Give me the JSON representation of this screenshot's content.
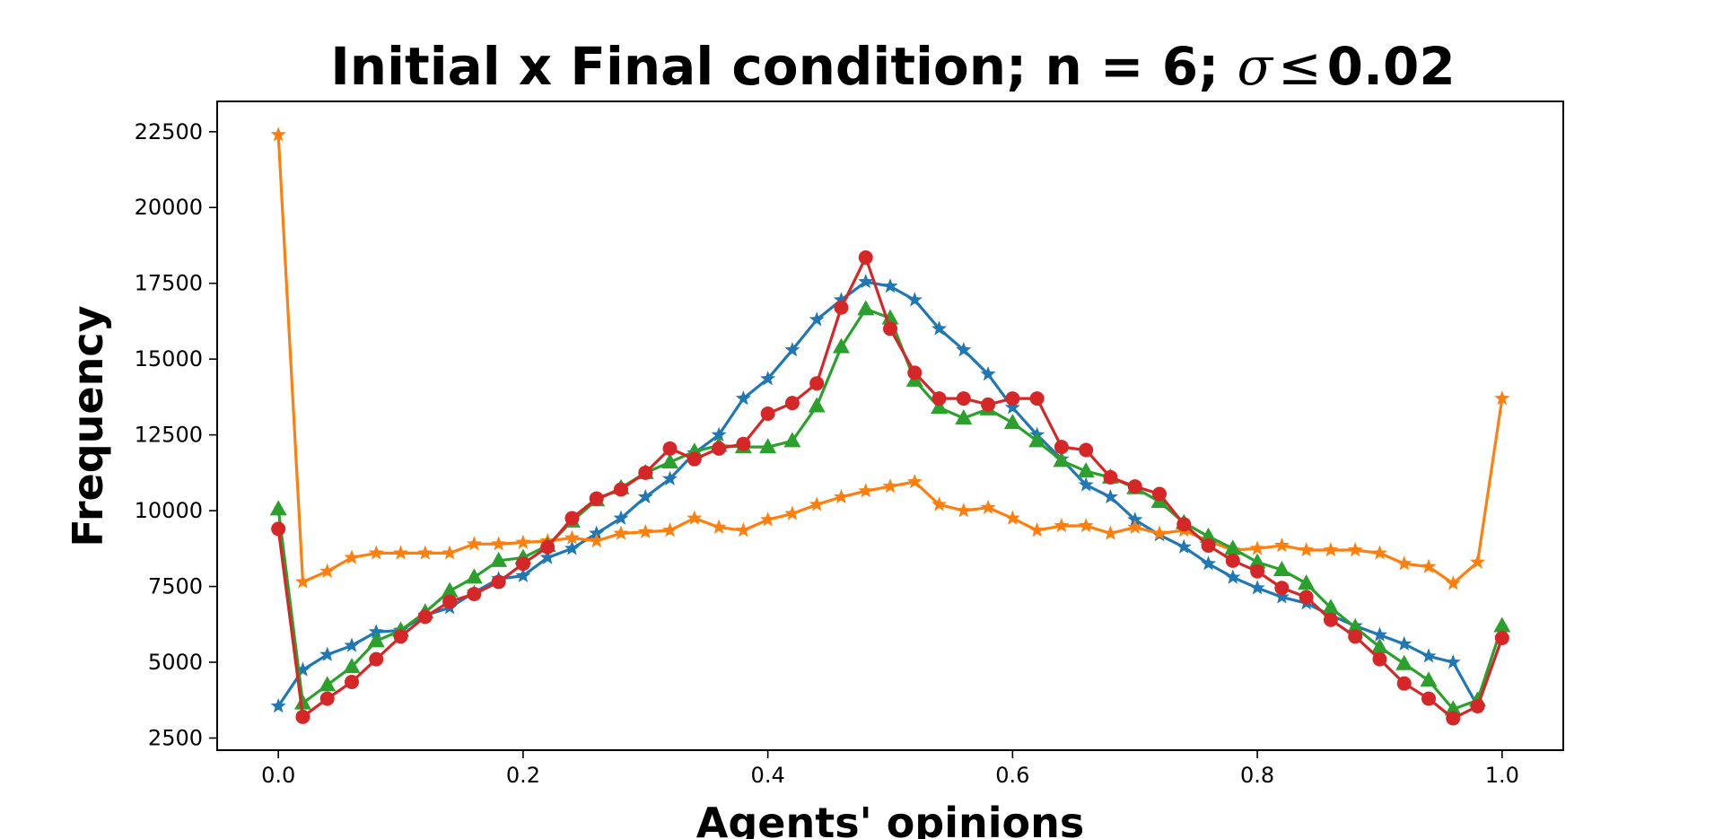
{
  "chart_data": {
    "type": "line",
    "title_text": "Initial x Final condition; n = 6; ",
    "title_sigma": "σ",
    "title_le": "≤",
    "title_value": "0.02",
    "xlabel": "Agents' opinions",
    "ylabel": "Frequency",
    "xlim": [
      -0.05,
      1.05
    ],
    "ylim": [
      2100,
      23500
    ],
    "xticks": [
      0.0,
      0.2,
      0.4,
      0.6,
      0.8,
      1.0
    ],
    "xtick_labels": [
      "0.0",
      "0.2",
      "0.4",
      "0.6",
      "0.8",
      "1.0"
    ],
    "yticks": [
      2500,
      5000,
      7500,
      10000,
      12500,
      15000,
      17500,
      20000,
      22500
    ],
    "ytick_labels": [
      "2500",
      "5000",
      "7500",
      "10000",
      "12500",
      "15000",
      "17500",
      "20000",
      "22500"
    ],
    "grid": false,
    "legend": "none",
    "x": [
      0.0,
      0.02,
      0.04,
      0.06,
      0.08,
      0.1,
      0.12,
      0.14,
      0.16,
      0.18,
      0.2,
      0.22,
      0.24,
      0.26,
      0.28,
      0.3,
      0.32,
      0.34,
      0.36,
      0.38,
      0.4,
      0.42,
      0.44,
      0.46,
      0.48,
      0.5,
      0.52,
      0.54,
      0.56,
      0.58,
      0.6,
      0.62,
      0.64,
      0.66,
      0.68,
      0.7,
      0.72,
      0.74,
      0.76,
      0.78,
      0.8,
      0.82,
      0.84,
      0.86,
      0.88,
      0.9,
      0.92,
      0.94,
      0.96,
      0.98,
      1.0
    ],
    "series": [
      {
        "color": "#1f77b4",
        "marker": "star",
        "values": [
          3550,
          4750,
          5250,
          5550,
          6000,
          6050,
          6550,
          6800,
          7300,
          7750,
          7850,
          8450,
          8750,
          9250,
          9750,
          10450,
          11050,
          11900,
          12500,
          13700,
          14350,
          15300,
          16300,
          16950,
          17550,
          17400,
          16950,
          16000,
          15300,
          14500,
          13400,
          12500,
          11700,
          10850,
          10450,
          9700,
          9200,
          8800,
          8250,
          7800,
          7450,
          7150,
          6950,
          6550,
          6200,
          5900,
          5600,
          5200,
          5000,
          3550,
          5800
        ]
      },
      {
        "color": "#ff7f0e",
        "marker": "star",
        "values": [
          22400,
          7650,
          8000,
          8450,
          8600,
          8600,
          8600,
          8600,
          8900,
          8900,
          8950,
          9000,
          9100,
          9000,
          9250,
          9300,
          9350,
          9750,
          9450,
          9350,
          9700,
          9900,
          10200,
          10450,
          10650,
          10800,
          10950,
          10200,
          10000,
          10100,
          9750,
          9350,
          9500,
          9500,
          9250,
          9450,
          9250,
          9350,
          9000,
          8700,
          8750,
          8850,
          8700,
          8700,
          8700,
          8600,
          8250,
          8150,
          7600,
          8300,
          13700
        ]
      },
      {
        "color": "#2ca02c",
        "marker": "triangle",
        "values": [
          10050,
          3650,
          4250,
          4850,
          5700,
          6050,
          6650,
          7350,
          7800,
          8350,
          8450,
          8850,
          9650,
          10350,
          10750,
          11250,
          11600,
          11950,
          12150,
          12100,
          12100,
          12300,
          13450,
          15400,
          16650,
          16350,
          14300,
          13400,
          13050,
          13350,
          12900,
          12300,
          11650,
          11300,
          11100,
          10750,
          10300,
          9600,
          9150,
          8750,
          8300,
          8050,
          7600,
          6800,
          6150,
          5500,
          4950,
          4400,
          3450,
          3750,
          6200
        ]
      },
      {
        "color": "#d62728",
        "marker": "circle",
        "values": [
          9400,
          3200,
          3800,
          4350,
          5100,
          5850,
          6500,
          7000,
          7250,
          7650,
          8250,
          8800,
          9750,
          10400,
          10700,
          11250,
          12050,
          11700,
          12050,
          12200,
          13200,
          13550,
          14200,
          16700,
          18350,
          16000,
          14550,
          13700,
          13700,
          13500,
          13700,
          13700,
          12100,
          12000,
          11100,
          10800,
          10550,
          9550,
          8850,
          8350,
          8000,
          7450,
          7150,
          6400,
          5850,
          5100,
          4300,
          3800,
          3150,
          3550,
          5800
        ]
      }
    ]
  }
}
